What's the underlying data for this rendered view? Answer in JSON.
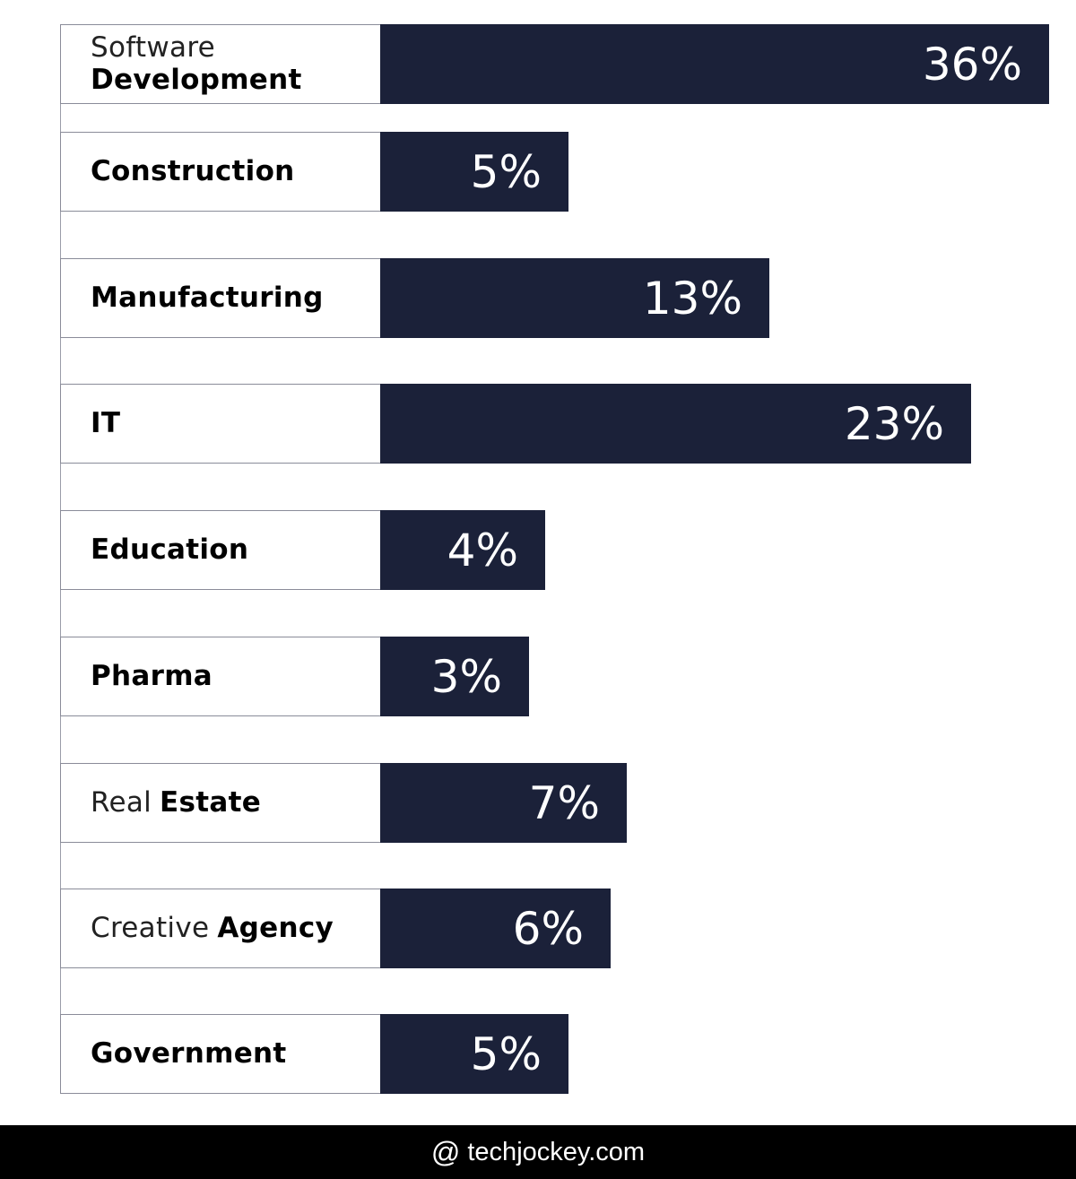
{
  "chart_data": {
    "type": "bar",
    "orientation": "horizontal",
    "categories": [
      {
        "light": "Software",
        "bold": "Development",
        "stacked": true
      },
      {
        "light": "",
        "bold": "Construction"
      },
      {
        "light": "",
        "bold": "Manufacturing"
      },
      {
        "light": "",
        "bold": "IT"
      },
      {
        "light": "",
        "bold": "Education"
      },
      {
        "light": "",
        "bold": "Pharma"
      },
      {
        "light": "Real",
        "bold": "Estate"
      },
      {
        "light": "Creative",
        "bold": "Agency"
      },
      {
        "light": "",
        "bold": "Government"
      }
    ],
    "values": [
      36,
      5,
      13,
      23,
      4,
      3,
      7,
      6,
      5
    ],
    "value_labels": [
      "36%",
      "5%",
      "13%",
      "23%",
      "4%",
      "3%",
      "7%",
      "6%",
      "5%"
    ],
    "bar_color": "#1b2139",
    "grid": false,
    "legend": "none"
  },
  "footer": {
    "icon": "at-icon",
    "text": "techjockey.com"
  }
}
